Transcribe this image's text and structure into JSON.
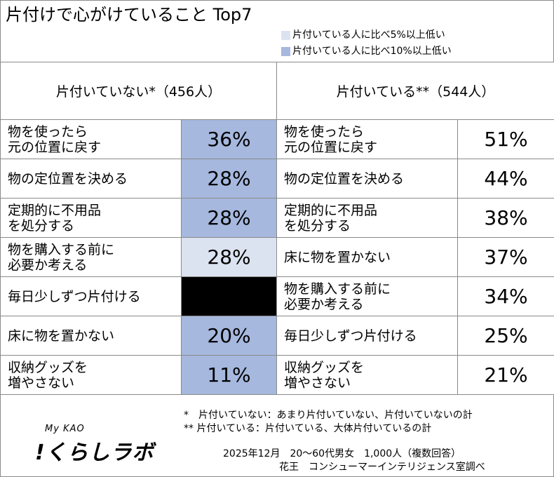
{
  "title": "片付けで心がけていること Top7",
  "colors": {
    "light": "#dce3f0",
    "mid": "#a6b8de",
    "black": "#000000",
    "white": "#ffffff"
  },
  "legend": [
    {
      "label": "片付いている人に比べ5%以上低い",
      "color": "#dce3f0"
    },
    {
      "label": "片付いている人に比べ10%以上低い",
      "color": "#a6b8de"
    }
  ],
  "columns": {
    "left_header": "片付いていない*（456人）",
    "right_header": "片付いている**（544人）"
  },
  "chart_data": {
    "type": "table",
    "title": "片付けで心がけていること Top7",
    "groups": [
      {
        "name": "片付いていない*（456人）",
        "rows": [
          {
            "lines": [
              "物を使ったら",
              "元の位置に戻す"
            ],
            "value": "36%",
            "shade": "mid"
          },
          {
            "lines": [
              "物の定位置を決める"
            ],
            "value": "28%",
            "shade": "mid"
          },
          {
            "lines": [
              "定期的に不用品",
              "を処分する"
            ],
            "value": "28%",
            "shade": "mid"
          },
          {
            "lines": [
              "物を購入する前に",
              "必要か考える"
            ],
            "value": "28%",
            "shade": "light"
          },
          {
            "lines": [
              "毎日少しずつ片付ける"
            ],
            "value": "",
            "shade": "black"
          },
          {
            "lines": [
              "床に物を置かない"
            ],
            "value": "20%",
            "shade": "mid"
          },
          {
            "lines": [
              "収納グッズを",
              "増やさない"
            ],
            "value": "11%",
            "shade": "mid"
          }
        ]
      },
      {
        "name": "片付いている**（544人）",
        "rows": [
          {
            "lines": [
              "物を使ったら",
              "元の位置に戻す"
            ],
            "value": "51%",
            "shade": "white"
          },
          {
            "lines": [
              "物の定位置を決める"
            ],
            "value": "44%",
            "shade": "white"
          },
          {
            "lines": [
              "定期的に不用品",
              "を処分する"
            ],
            "value": "38%",
            "shade": "white"
          },
          {
            "lines": [
              "床に物を置かない"
            ],
            "value": "37%",
            "shade": "white"
          },
          {
            "lines": [
              "物を購入する前に",
              "必要か考える"
            ],
            "value": "34%",
            "shade": "white"
          },
          {
            "lines": [
              "毎日少しずつ片付ける"
            ],
            "value": "25%",
            "shade": "white"
          },
          {
            "lines": [
              "収納グッズを",
              "増やさない"
            ],
            "value": "21%",
            "shade": "white"
          }
        ]
      }
    ]
  },
  "footnotes": {
    "note1": "*　片付いていない：あまり片付いていない、片付いていないの計",
    "note2": "**  片付いている：片付いている、大体片付いているの計",
    "survey": "2025年12月　20～60代男女　1,000人（複数回答）",
    "source": "花王　コンシューマーインテリジェンス室調べ"
  },
  "brand": {
    "small": "My KAO",
    "big": "!くらしラボ"
  }
}
